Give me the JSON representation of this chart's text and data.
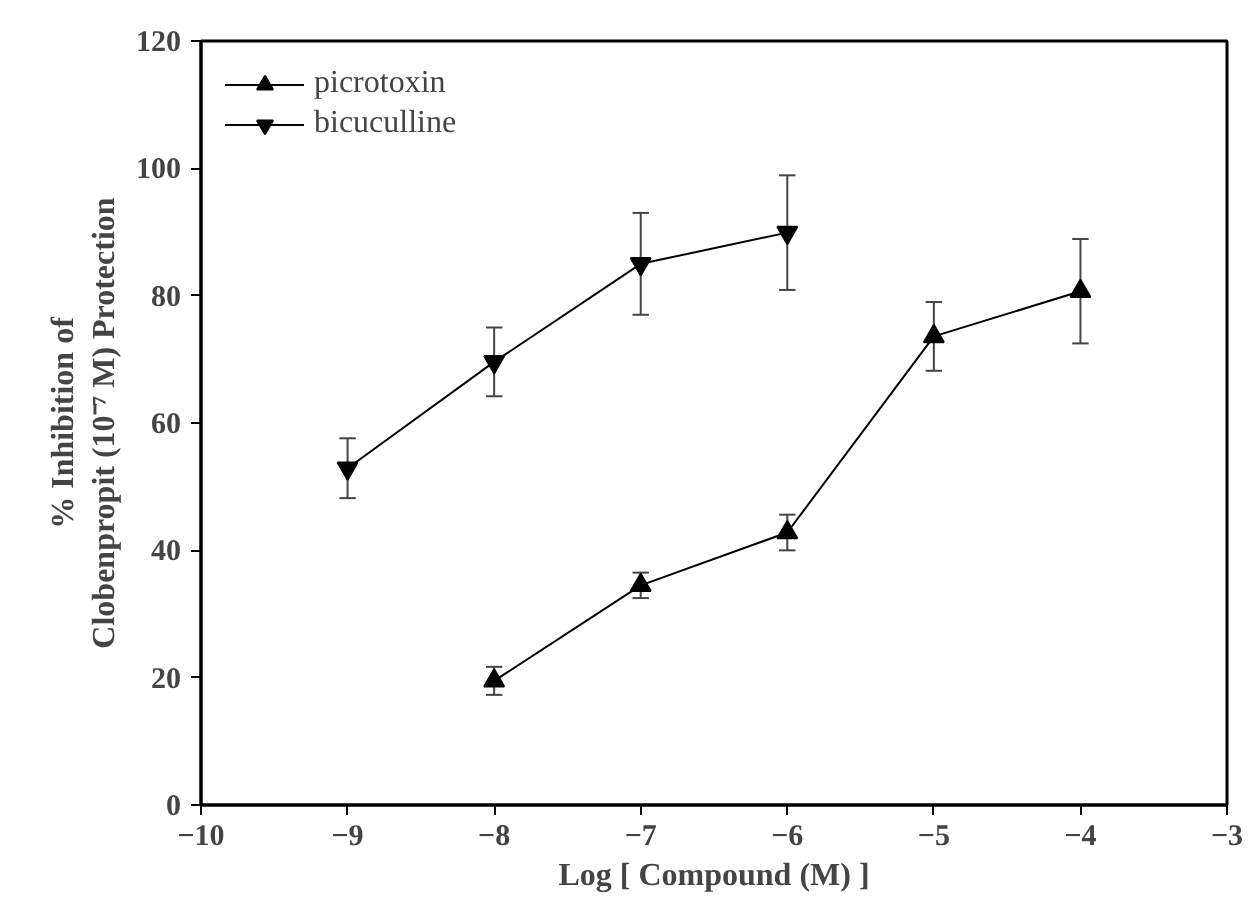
{
  "chart_data": {
    "type": "line",
    "xlabel": "Log [ Compound (M) ]",
    "ylabel": "% Inhibition of\nClobenpropit (10⁻⁷ M) Protection",
    "xlim": [
      -10,
      -3
    ],
    "xticks": [
      -10,
      -9,
      -8,
      -7,
      -6,
      -5,
      -4,
      -3
    ],
    "ylim": [
      0,
      120
    ],
    "yticks": [
      0,
      20,
      40,
      60,
      80,
      100,
      120
    ],
    "grid": false,
    "legend": "top left",
    "line_style": "solid",
    "series": [
      {
        "name": "picrotoxin",
        "color": "#000000",
        "marker": "triangle",
        "x": [
          -8,
          -7,
          -6,
          -5,
          -4
        ],
        "values": [
          19.5,
          34.5,
          42.8,
          73.6,
          80.7
        ],
        "errors": [
          2.2,
          2.0,
          2.8,
          5.4,
          8.2
        ]
      },
      {
        "name": "bicuculline",
        "color": "#000000",
        "marker": "triangle",
        "x": [
          -9,
          -8,
          -7,
          -6
        ],
        "values": [
          52.9,
          69.6,
          85.0,
          89.9
        ],
        "errors": [
          4.7,
          5.4,
          8.0,
          9.0
        ]
      }
    ]
  }
}
